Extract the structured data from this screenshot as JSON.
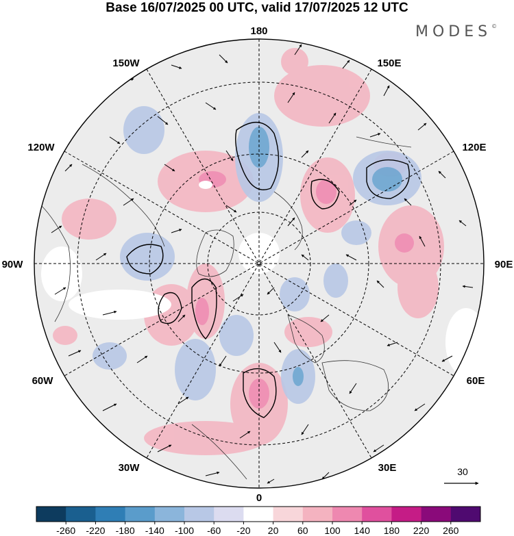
{
  "title": "Base 16/07/2025 00 UTC, valid 17/07/2025 12 UTC",
  "brand": "MODES",
  "brand_mark": "©",
  "longitude_labels": {
    "lon_180": "180",
    "lon_150e": "150E",
    "lon_120e": "120E",
    "lon_90e": "90E",
    "lon_60e": "60E",
    "lon_30e": "30E",
    "lon_0": "0",
    "lon_30w": "30W",
    "lon_60w": "60W",
    "lon_90w": "90W",
    "lon_120w": "120W",
    "lon_150w": "150W"
  },
  "wind_reference": {
    "value": "30"
  },
  "colorbar": {
    "labels": [
      "-260",
      "-220",
      "-180",
      "-140",
      "-100",
      "-60",
      "-20",
      "20",
      "60",
      "100",
      "140",
      "180",
      "220",
      "260"
    ],
    "colors": [
      "#0d3b5e",
      "#1a5f8f",
      "#2f7eb5",
      "#5a9ccb",
      "#8bb5db",
      "#b8c8e6",
      "#dcdcf0",
      "#ffffff",
      "#f8d6da",
      "#f4b3c0",
      "#ee88b0",
      "#e0509e",
      "#c51c86",
      "#8a0a7a",
      "#4f0a70"
    ]
  },
  "map_features": {
    "projection": "north-polar-stereographic",
    "background": "#ececec",
    "positive_color": "#f4b3c0",
    "negative_color": "#b8c8e6"
  }
}
